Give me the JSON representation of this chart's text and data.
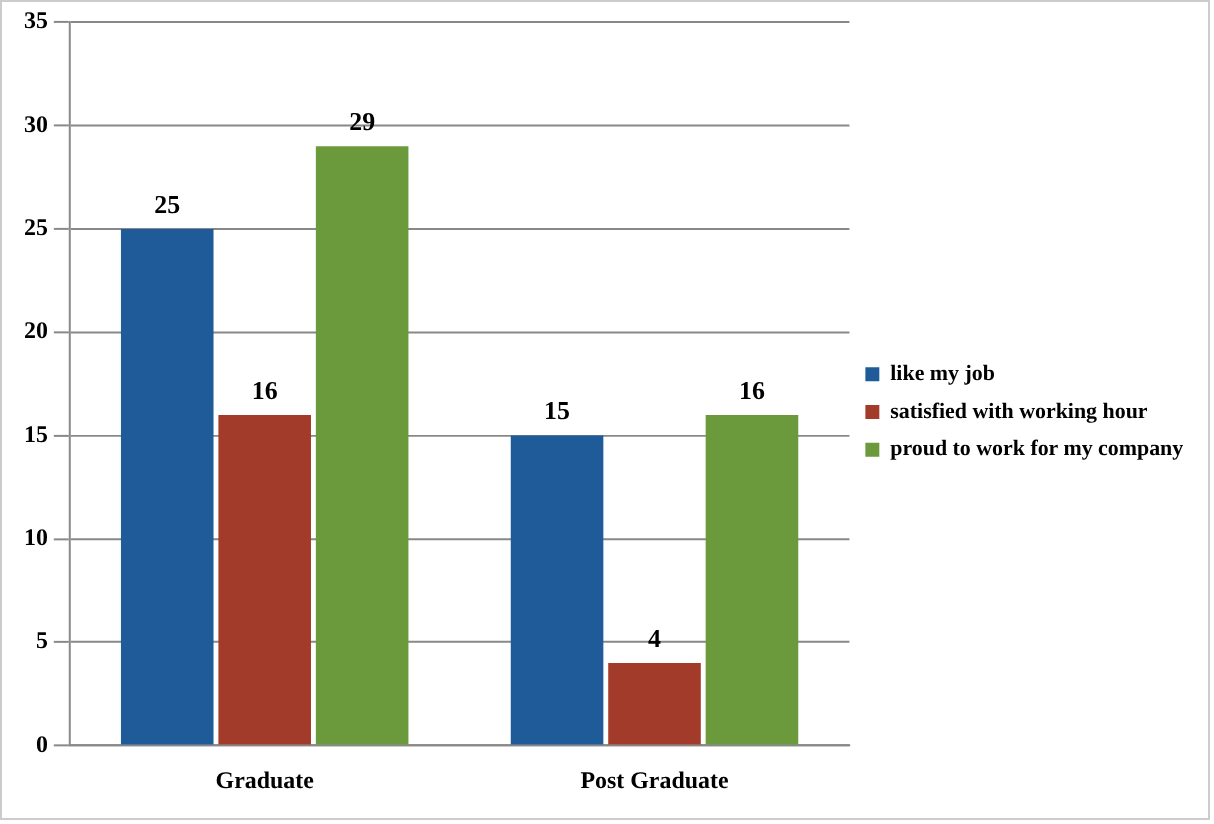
{
  "chart_data": {
    "type": "bar",
    "categories": [
      "Graduate",
      "Post Graduate"
    ],
    "series": [
      {
        "name": "like my job",
        "color": "#1f5b99",
        "values": [
          25,
          15
        ]
      },
      {
        "name": "satisfied with working hour",
        "color": "#a33b2b",
        "values": [
          16,
          4
        ]
      },
      {
        "name": "proud to work for my company",
        "color": "#6a9a3c",
        "values": [
          29,
          16
        ]
      }
    ],
    "ylim": [
      0,
      35
    ],
    "yticks": [
      0,
      5,
      10,
      15,
      20,
      25,
      30,
      35
    ],
    "grid": "y",
    "legend": "right",
    "data_labels": true
  }
}
